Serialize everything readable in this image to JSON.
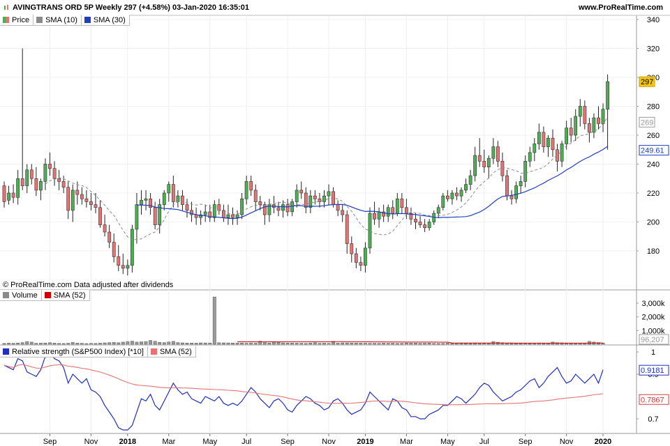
{
  "header": {
    "title": "AVINGTRANS ORD 5P Weekly 297 (+4.58%) 03-Jan-2020 16:35:01",
    "site": "www.ProRealTime.com"
  },
  "price_panel": {
    "legend": [
      {
        "label": "Price",
        "color": "#4caf50",
        "color2": "#e57373"
      },
      {
        "label": "SMA (10)",
        "color": "#8a8a8a"
      },
      {
        "label": "SMA (30)",
        "color": "#1f3fbf"
      }
    ],
    "note": "© ProRealTime.com  Data adjusted after dividends",
    "yaxis_ticks": [
      "340",
      "320",
      "300",
      "280",
      "260",
      "240",
      "220",
      "200",
      "180"
    ],
    "markers": [
      {
        "label": "297",
        "value": 297,
        "bg": "#f5c518",
        "fg": "#000000",
        "border": "#c9a000"
      },
      {
        "label": "269",
        "value": 269,
        "bg": "#ffffff",
        "fg": "#9a9a9a",
        "border": "#9a9a9a"
      },
      {
        "label": "249.61",
        "value": 249.61,
        "bg": "#ffffff",
        "fg": "#1f3fbf",
        "border": "#1f3fbf"
      }
    ]
  },
  "volume_panel": {
    "legend": [
      {
        "label": "Volume",
        "color": "#8a8a8a"
      },
      {
        "label": "SMA (52)",
        "color": "#cc0000"
      }
    ],
    "yaxis_ticks": [
      "3,000k",
      "2,000k",
      "1,000k"
    ],
    "marker": {
      "label": "96,207",
      "bg": "#ffffff",
      "fg": "#9a9a9a",
      "border": "#9a9a9a"
    }
  },
  "rs_panel": {
    "legend": [
      {
        "label": "Relative strength (S&P500 Index) [*10]",
        "color": "#1f2fbf"
      },
      {
        "label": "SMA (52)",
        "color": "#e57373"
      }
    ],
    "yaxis_ticks": [
      "1",
      "0.9",
      "0.7"
    ],
    "markers": [
      {
        "label": "0.9181",
        "value": 0.9181,
        "bg": "#ffffff",
        "fg": "#1f2fbf",
        "border": "#1f2fbf"
      },
      {
        "label": "0.7867",
        "value": 0.7867,
        "bg": "#ffffff",
        "fg": "#d04040",
        "border": "#d04040"
      }
    ]
  },
  "xaxis": {
    "ticks": [
      {
        "label": "Sep",
        "bold": false,
        "week": 10
      },
      {
        "label": "Nov",
        "bold": false,
        "week": 19
      },
      {
        "label": "2018",
        "bold": true,
        "week": 27
      },
      {
        "label": "Mar",
        "bold": false,
        "week": 36
      },
      {
        "label": "May",
        "bold": false,
        "week": 45
      },
      {
        "label": "Jul",
        "bold": false,
        "week": 53
      },
      {
        "label": "Sep",
        "bold": false,
        "week": 62
      },
      {
        "label": "Nov",
        "bold": false,
        "week": 71
      },
      {
        "label": "2019",
        "bold": true,
        "week": 79
      },
      {
        "label": "Mar",
        "bold": false,
        "week": 88
      },
      {
        "label": "May",
        "bold": false,
        "week": 97
      },
      {
        "label": "Jul",
        "bold": false,
        "week": 105
      },
      {
        "label": "Sep",
        "bold": false,
        "week": 114
      },
      {
        "label": "Nov",
        "bold": false,
        "week": 123
      },
      {
        "label": "2020",
        "bold": true,
        "week": 131
      }
    ]
  },
  "chart_data": {
    "type": "candlestick",
    "title": "AVINGTRANS ORD 5P Weekly 297 (+4.58%) 03-Jan-2020 16:35:01",
    "ylim": [
      160,
      345
    ],
    "ohlc": [
      [
        225,
        228,
        210,
        214
      ],
      [
        215,
        225,
        212,
        220
      ],
      [
        220,
        226,
        213,
        217
      ],
      [
        217,
        236,
        212,
        230
      ],
      [
        230,
        320,
        222,
        225
      ],
      [
        225,
        240,
        220,
        236
      ],
      [
        236,
        240,
        226,
        230
      ],
      [
        230,
        238,
        218,
        222
      ],
      [
        222,
        230,
        215,
        228
      ],
      [
        228,
        244,
        222,
        240
      ],
      [
        240,
        248,
        232,
        237
      ],
      [
        237,
        242,
        225,
        230
      ],
      [
        230,
        236,
        222,
        228
      ],
      [
        228,
        232,
        220,
        224
      ],
      [
        224,
        228,
        202,
        208
      ],
      [
        208,
        226,
        200,
        222
      ],
      [
        222,
        228,
        212,
        219
      ],
      [
        219,
        224,
        212,
        216
      ],
      [
        216,
        222,
        210,
        214
      ],
      [
        214,
        220,
        208,
        212
      ],
      [
        212,
        220,
        206,
        210
      ],
      [
        210,
        215,
        196,
        198
      ],
      [
        198,
        205,
        190,
        193
      ],
      [
        193,
        198,
        182,
        186
      ],
      [
        186,
        192,
        172,
        176
      ],
      [
        176,
        184,
        166,
        170
      ],
      [
        170,
        178,
        164,
        168
      ],
      [
        168,
        174,
        163,
        170
      ],
      [
        170,
        198,
        165,
        195
      ],
      [
        195,
        220,
        185,
        212
      ],
      [
        212,
        222,
        205,
        215
      ],
      [
        215,
        222,
        208,
        216
      ],
      [
        216,
        220,
        205,
        210
      ],
      [
        210,
        214,
        195,
        198
      ],
      [
        198,
        216,
        192,
        212
      ],
      [
        212,
        222,
        208,
        220
      ],
      [
        220,
        228,
        214,
        226
      ],
      [
        226,
        232,
        210,
        214
      ],
      [
        214,
        222,
        210,
        218
      ],
      [
        218,
        222,
        208,
        212
      ],
      [
        212,
        216,
        203,
        208
      ],
      [
        208,
        214,
        200,
        205
      ],
      [
        205,
        210,
        198,
        203
      ],
      [
        203,
        208,
        198,
        205
      ],
      [
        205,
        212,
        200,
        207
      ],
      [
        207,
        212,
        200,
        203
      ],
      [
        203,
        215,
        200,
        212
      ],
      [
        212,
        216,
        205,
        208
      ],
      [
        208,
        212,
        200,
        203
      ],
      [
        203,
        212,
        198,
        205
      ],
      [
        205,
        210,
        198,
        203
      ],
      [
        203,
        208,
        198,
        205
      ],
      [
        205,
        220,
        202,
        216
      ],
      [
        216,
        232,
        212,
        228
      ],
      [
        228,
        232,
        218,
        222
      ],
      [
        222,
        226,
        208,
        214
      ],
      [
        214,
        218,
        208,
        212
      ],
      [
        212,
        214,
        198,
        205
      ],
      [
        205,
        216,
        200,
        212
      ],
      [
        212,
        218,
        206,
        210
      ],
      [
        210,
        214,
        204,
        208
      ],
      [
        208,
        215,
        203,
        212
      ],
      [
        212,
        216,
        204,
        207
      ],
      [
        207,
        216,
        204,
        214
      ],
      [
        214,
        226,
        210,
        222
      ],
      [
        222,
        228,
        216,
        220
      ],
      [
        220,
        224,
        206,
        210
      ],
      [
        210,
        222,
        206,
        218
      ],
      [
        218,
        222,
        212,
        216
      ],
      [
        216,
        220,
        210,
        214
      ],
      [
        214,
        222,
        210,
        218
      ],
      [
        218,
        226,
        212,
        221
      ],
      [
        221,
        224,
        210,
        212
      ],
      [
        212,
        215,
        204,
        208
      ],
      [
        208,
        212,
        200,
        205
      ],
      [
        205,
        208,
        178,
        185
      ],
      [
        185,
        190,
        172,
        178
      ],
      [
        178,
        182,
        168,
        172
      ],
      [
        172,
        176,
        166,
        170
      ],
      [
        170,
        186,
        165,
        182
      ],
      [
        182,
        210,
        178,
        206
      ],
      [
        206,
        214,
        198,
        202
      ],
      [
        202,
        210,
        196,
        207
      ],
      [
        207,
        212,
        200,
        204
      ],
      [
        204,
        212,
        200,
        210
      ],
      [
        210,
        215,
        202,
        206
      ],
      [
        206,
        220,
        204,
        216
      ],
      [
        216,
        220,
        206,
        210
      ],
      [
        210,
        216,
        202,
        206
      ],
      [
        206,
        210,
        198,
        202
      ],
      [
        202,
        206,
        195,
        200
      ],
      [
        200,
        204,
        196,
        198
      ],
      [
        198,
        202,
        193,
        196
      ],
      [
        196,
        202,
        194,
        200
      ],
      [
        200,
        208,
        198,
        206
      ],
      [
        206,
        212,
        203,
        210
      ],
      [
        210,
        220,
        208,
        218
      ],
      [
        218,
        222,
        214,
        216
      ],
      [
        216,
        222,
        212,
        220
      ],
      [
        220,
        224,
        215,
        218
      ],
      [
        218,
        224,
        214,
        222
      ],
      [
        222,
        230,
        220,
        226
      ],
      [
        226,
        236,
        222,
        232
      ],
      [
        232,
        252,
        228,
        246
      ],
      [
        246,
        258,
        238,
        242
      ],
      [
        242,
        250,
        234,
        238
      ],
      [
        238,
        246,
        230,
        244
      ],
      [
        244,
        258,
        240,
        252
      ],
      [
        252,
        256,
        238,
        242
      ],
      [
        242,
        248,
        228,
        232
      ],
      [
        232,
        236,
        215,
        218
      ],
      [
        218,
        222,
        212,
        216
      ],
      [
        216,
        228,
        213,
        225
      ],
      [
        225,
        232,
        220,
        228
      ],
      [
        228,
        246,
        224,
        242
      ],
      [
        242,
        252,
        238,
        248
      ],
      [
        248,
        258,
        242,
        254
      ],
      [
        254,
        268,
        250,
        262
      ],
      [
        262,
        266,
        248,
        252
      ],
      [
        252,
        260,
        245,
        258
      ],
      [
        258,
        264,
        245,
        250
      ],
      [
        250,
        254,
        235,
        242
      ],
      [
        242,
        256,
        238,
        254
      ],
      [
        254,
        270,
        250,
        265
      ],
      [
        265,
        272,
        255,
        260
      ],
      [
        260,
        278,
        256,
        273
      ],
      [
        273,
        285,
        266,
        280
      ],
      [
        280,
        284,
        264,
        268
      ],
      [
        268,
        272,
        255,
        262
      ],
      [
        262,
        275,
        258,
        272
      ],
      [
        272,
        280,
        264,
        268
      ],
      [
        268,
        282,
        262,
        278
      ],
      [
        278,
        302,
        250,
        297
      ]
    ],
    "volume_k": [
      60,
      80,
      70,
      90,
      120,
      200,
      160,
      70,
      80,
      90,
      110,
      85,
      60,
      55,
      75,
      130,
      80,
      70,
      50,
      65,
      60,
      80,
      100,
      120,
      140,
      110,
      160,
      200,
      230,
      160,
      180,
      200,
      280,
      220,
      140,
      120,
      170,
      210,
      120,
      100,
      90,
      85,
      80,
      100,
      95,
      90,
      3450,
      110,
      100,
      95,
      90,
      80,
      85,
      70,
      80,
      75,
      220,
      120,
      90,
      180,
      130,
      100,
      90,
      85,
      80,
      75,
      60,
      90,
      110,
      70,
      80,
      60,
      210,
      80,
      100,
      95,
      90,
      85,
      80,
      75,
      70,
      70,
      65,
      80,
      70,
      75,
      60,
      70,
      90,
      80,
      80,
      70,
      75,
      85,
      60,
      55,
      60,
      80,
      75,
      80,
      70,
      60,
      55,
      65,
      80,
      60,
      70,
      200,
      150,
      110,
      80,
      75,
      70,
      65,
      60,
      60,
      70,
      90,
      60,
      80,
      160,
      110,
      100,
      85,
      70,
      75,
      80,
      90,
      210,
      160,
      120,
      96
    ],
    "vol_ylim": [
      0,
      3700
    ],
    "rs": [
      0.94,
      0.93,
      0.92,
      0.97,
      0.96,
      0.91,
      0.9,
      0.89,
      0.92,
      0.98,
      1.0,
      0.97,
      0.96,
      0.93,
      0.86,
      0.9,
      0.88,
      0.86,
      0.88,
      0.83,
      0.82,
      0.8,
      0.76,
      0.73,
      0.7,
      0.66,
      0.65,
      0.65,
      0.67,
      0.73,
      0.79,
      0.78,
      0.81,
      0.76,
      0.74,
      0.78,
      0.82,
      0.86,
      0.83,
      0.81,
      0.82,
      0.79,
      0.78,
      0.77,
      0.8,
      0.79,
      0.78,
      0.8,
      0.77,
      0.76,
      0.77,
      0.76,
      0.78,
      0.81,
      0.84,
      0.82,
      0.79,
      0.77,
      0.75,
      0.78,
      0.79,
      0.77,
      0.74,
      0.73,
      0.76,
      0.78,
      0.8,
      0.79,
      0.77,
      0.76,
      0.74,
      0.75,
      0.78,
      0.79,
      0.77,
      0.74,
      0.72,
      0.73,
      0.74,
      0.77,
      0.82,
      0.8,
      0.78,
      0.76,
      0.74,
      0.79,
      0.78,
      0.75,
      0.74,
      0.71,
      0.71,
      0.7,
      0.7,
      0.72,
      0.73,
      0.74,
      0.76,
      0.76,
      0.78,
      0.8,
      0.79,
      0.77,
      0.79,
      0.81,
      0.84,
      0.86,
      0.85,
      0.82,
      0.8,
      0.78,
      0.79,
      0.8,
      0.82,
      0.83,
      0.85,
      0.87,
      0.88,
      0.84,
      0.86,
      0.89,
      0.91,
      0.93,
      0.89,
      0.86,
      0.87,
      0.9,
      0.88,
      0.86,
      0.88,
      0.9,
      0.86,
      0.92
    ]
  }
}
